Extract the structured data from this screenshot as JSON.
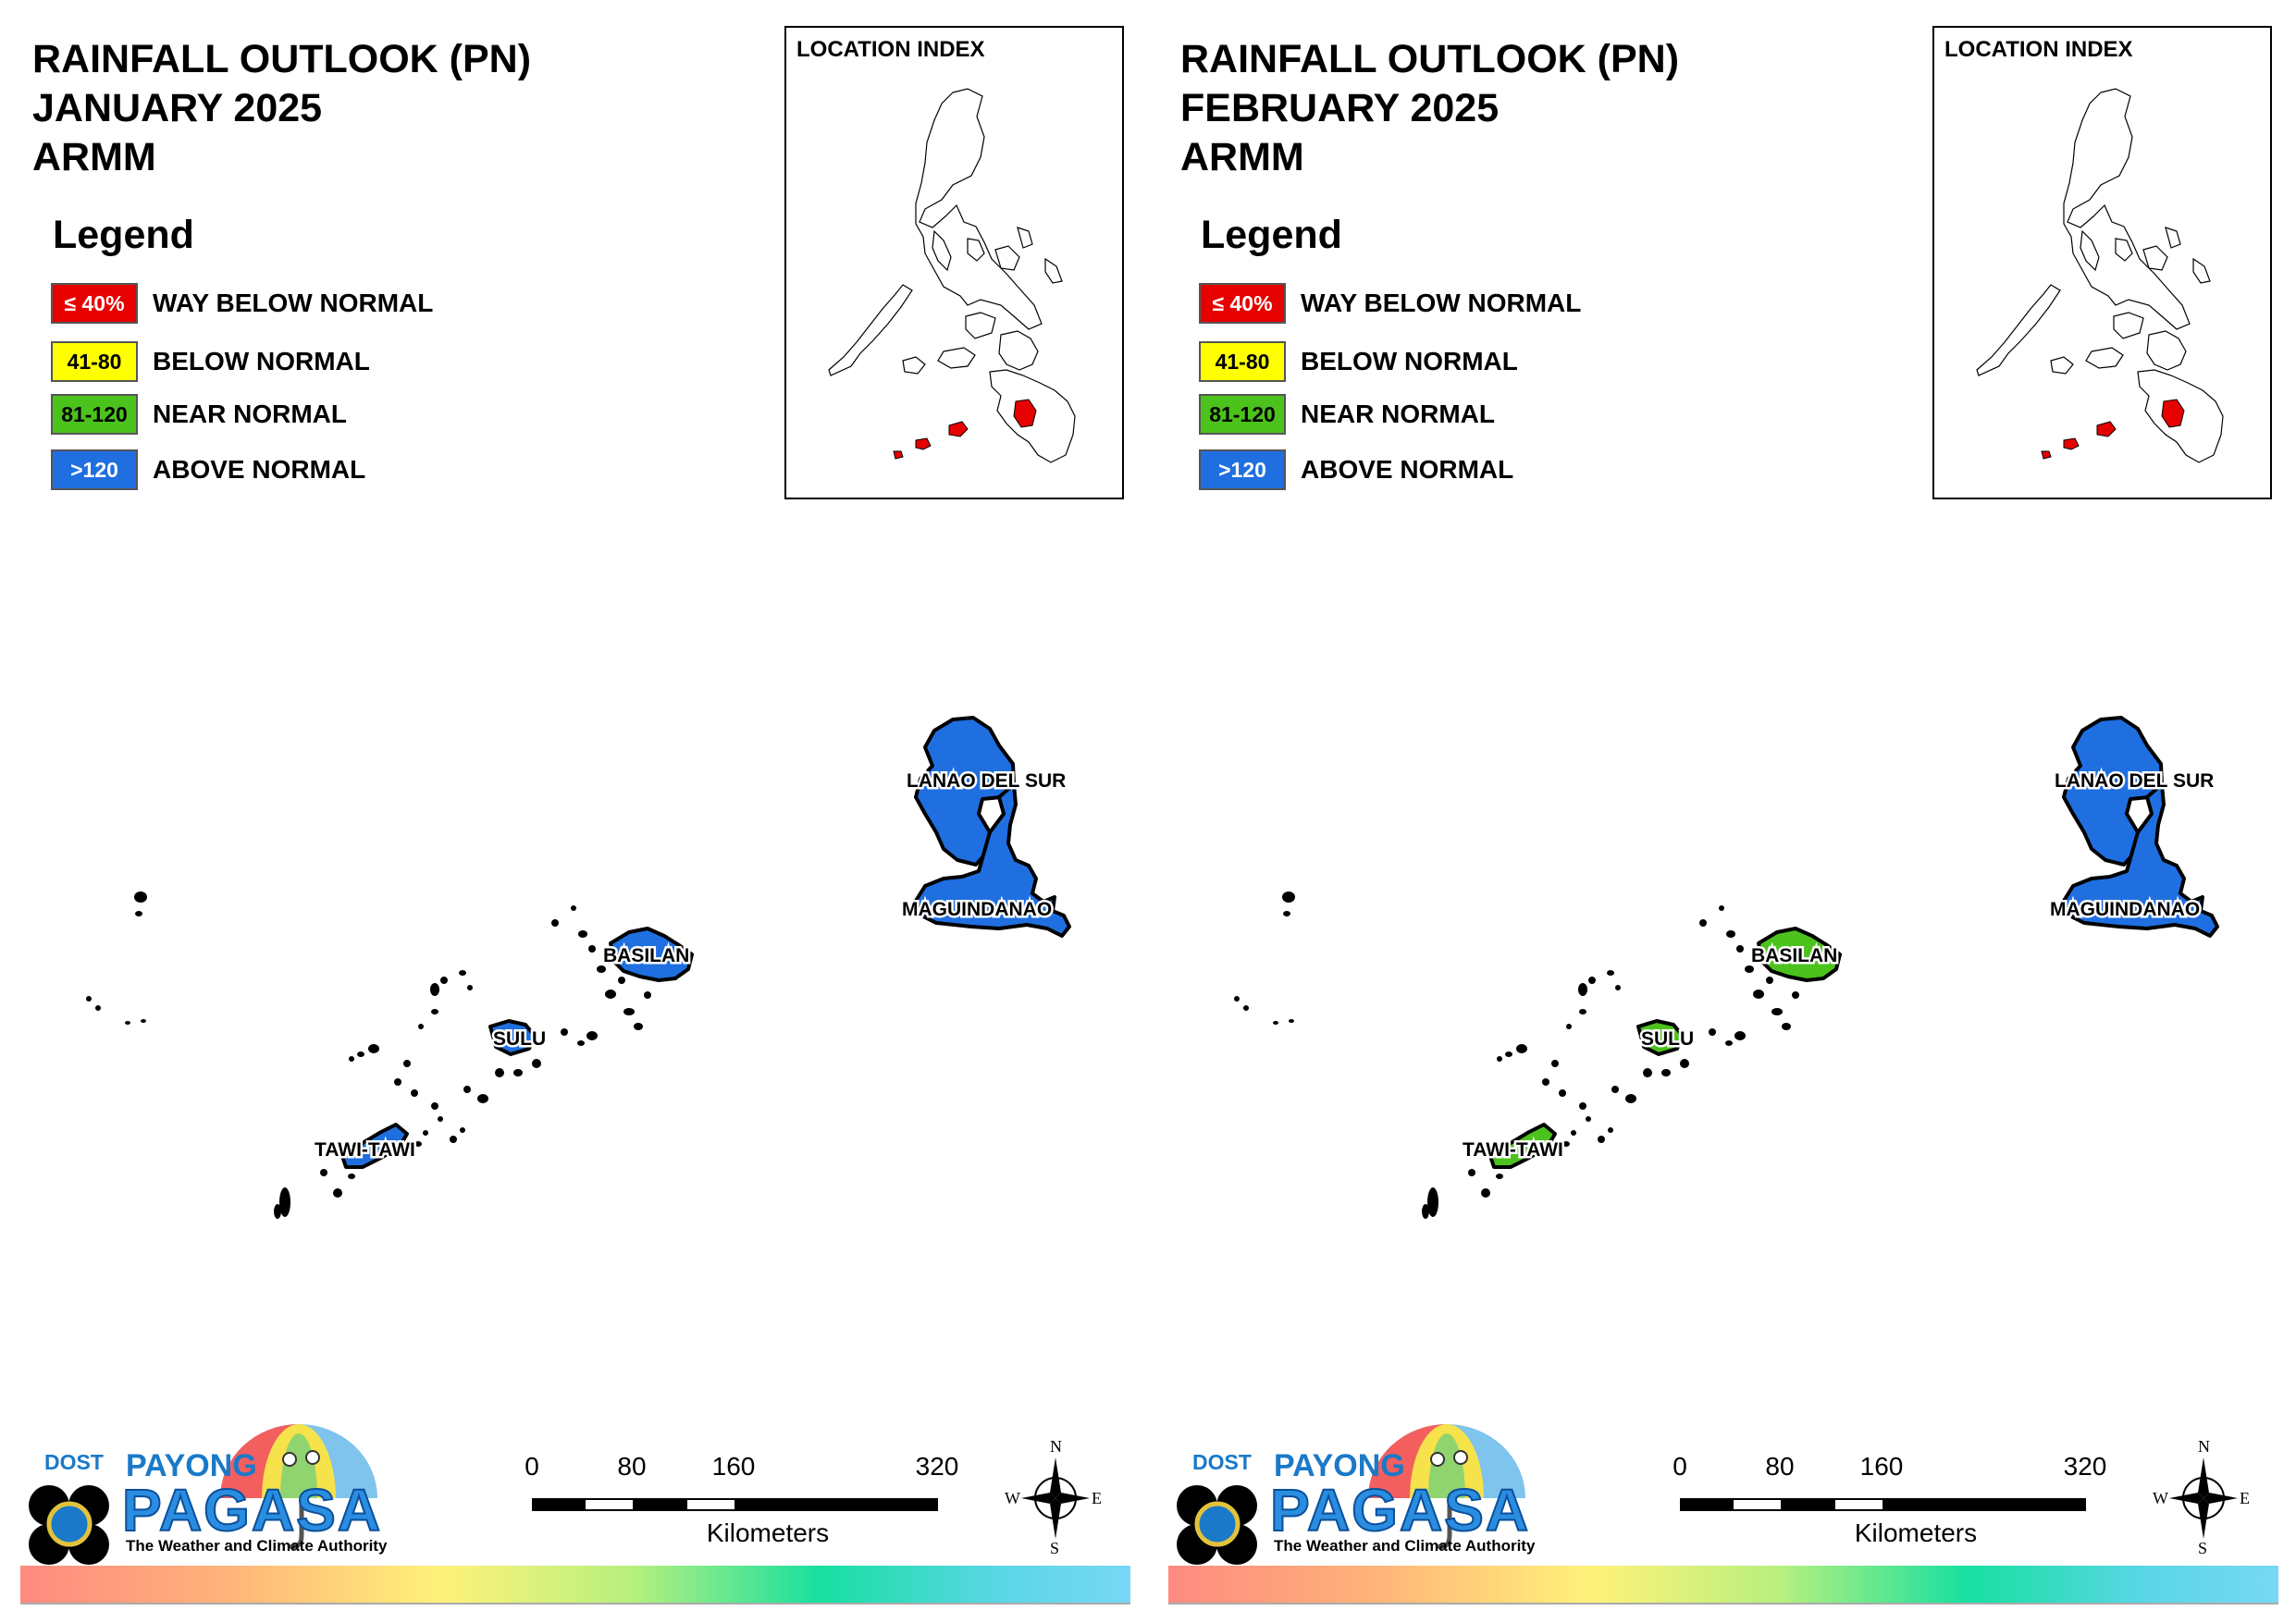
{
  "panels": [
    {
      "title": [
        "RAINFALL OUTLOOK (PN)",
        "JANUARY 2025",
        "ARMM"
      ],
      "legend": {
        "title": "Legend",
        "items": [
          {
            "range": "≤ 40%",
            "label": "WAY BELOW NORMAL",
            "color": "#e60000",
            "text_color": "#ffffff"
          },
          {
            "range": "41-80",
            "label": "BELOW NORMAL",
            "color": "#ffff00",
            "text_color": "#000000"
          },
          {
            "range": "81-120",
            "label": "NEAR NORMAL",
            "color": "#4cc21d",
            "text_color": "#000000"
          },
          {
            "range": ">120",
            "label": "ABOVE NORMAL",
            "color": "#1f6fe0",
            "text_color": "#ffffff"
          }
        ]
      },
      "inset_title": "LOCATION INDEX",
      "provinces": [
        {
          "name": "LANAO DEL SUR",
          "category": "ABOVE NORMAL",
          "color": "#1f6fe0"
        },
        {
          "name": "MAGUINDANAO",
          "category": "ABOVE NORMAL",
          "color": "#1f6fe0"
        },
        {
          "name": "BASILAN",
          "category": "ABOVE NORMAL",
          "color": "#1f6fe0"
        },
        {
          "name": "SULU",
          "category": "ABOVE NORMAL",
          "color": "#1f6fe0"
        },
        {
          "name": "TAWI-TAWI",
          "category": "ABOVE NORMAL",
          "color": "#1f6fe0"
        }
      ]
    },
    {
      "title": [
        "RAINFALL OUTLOOK (PN)",
        "FEBRUARY 2025",
        "ARMM"
      ],
      "legend": {
        "title": "Legend",
        "items": [
          {
            "range": "≤ 40%",
            "label": "WAY BELOW NORMAL",
            "color": "#e60000",
            "text_color": "#ffffff"
          },
          {
            "range": "41-80",
            "label": "BELOW NORMAL",
            "color": "#ffff00",
            "text_color": "#000000"
          },
          {
            "range": "81-120",
            "label": "NEAR NORMAL",
            "color": "#4cc21d",
            "text_color": "#000000"
          },
          {
            "range": ">120",
            "label": "ABOVE NORMAL",
            "color": "#1f6fe0",
            "text_color": "#ffffff"
          }
        ]
      },
      "inset_title": "LOCATION INDEX",
      "provinces": [
        {
          "name": "LANAO DEL SUR",
          "category": "ABOVE NORMAL",
          "color": "#1f6fe0"
        },
        {
          "name": "MAGUINDANAO",
          "category": "ABOVE NORMAL",
          "color": "#1f6fe0"
        },
        {
          "name": "BASILAN",
          "category": "NEAR NORMAL",
          "color": "#4cc21d"
        },
        {
          "name": "SULU",
          "category": "NEAR NORMAL",
          "color": "#4cc21d"
        },
        {
          "name": "TAWI-TAWI",
          "category": "NEAR NORMAL",
          "color": "#4cc21d"
        }
      ]
    }
  ],
  "scale": {
    "ticks": [
      "0",
      "80",
      "160",
      "320"
    ],
    "units": "Kilometers"
  },
  "compass": {
    "n": "N",
    "e": "E",
    "s": "S",
    "w": "W"
  },
  "logo": {
    "dost": "DOST",
    "payong": "PAYONG",
    "pagasa": "PAGASA",
    "tagline": "The Weather and Climate Authority"
  },
  "highlight_color": "#e60000"
}
